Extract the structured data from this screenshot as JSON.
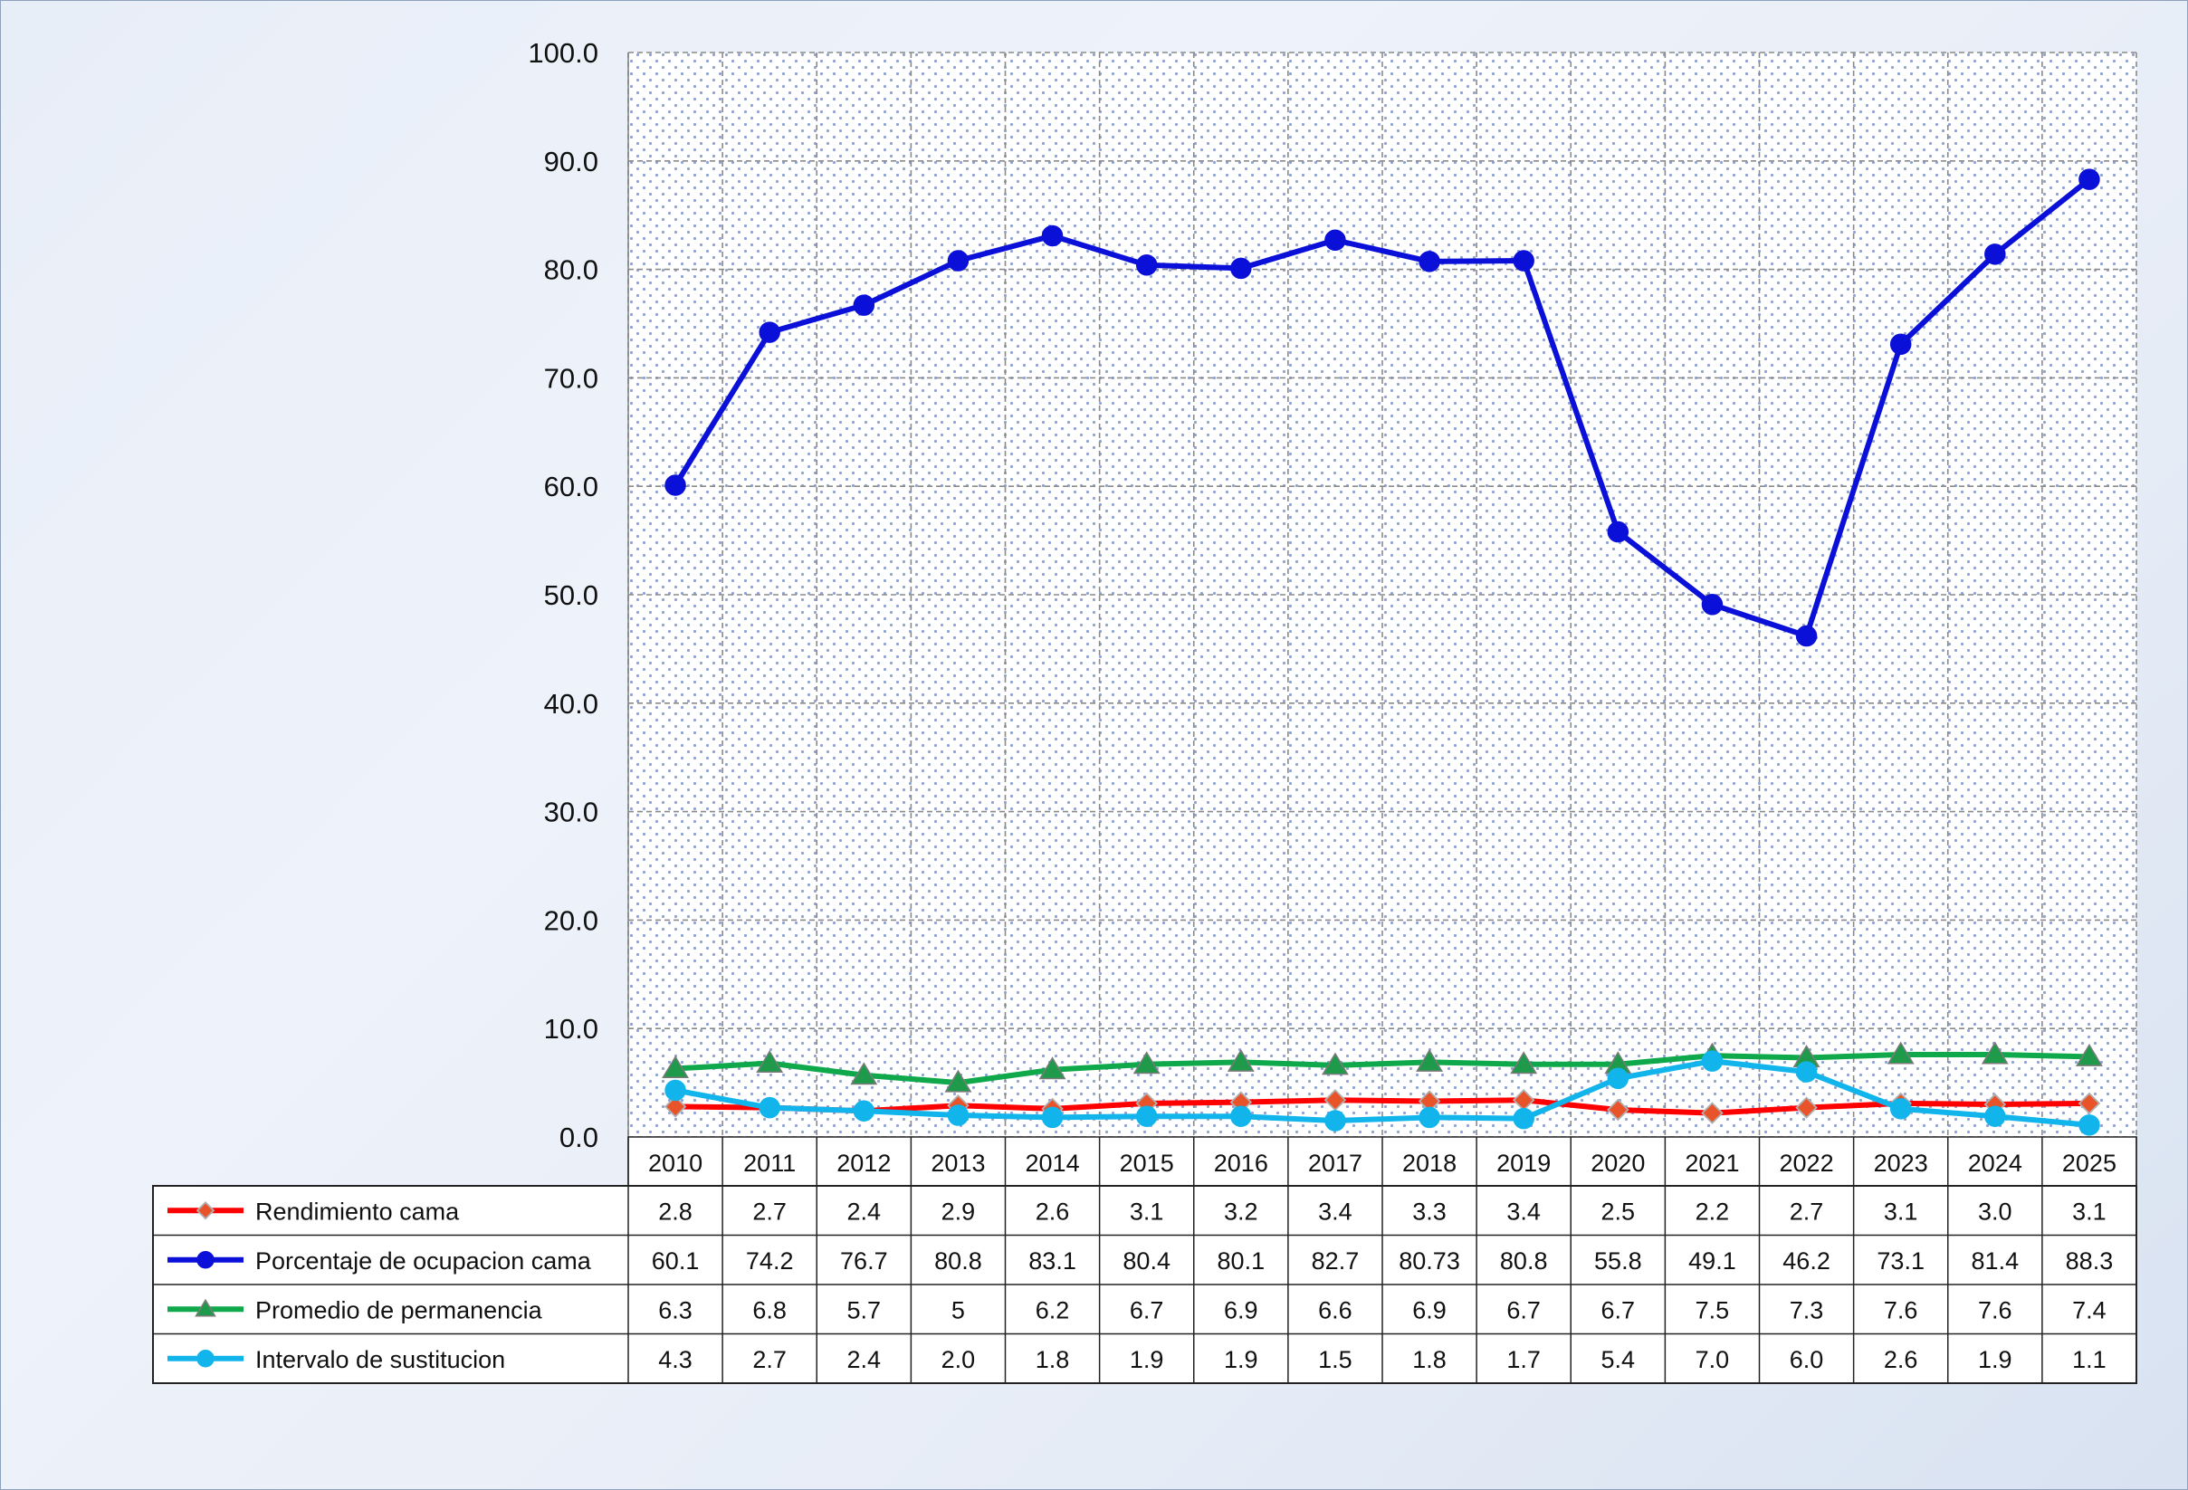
{
  "chart_data": {
    "type": "line",
    "title": "",
    "xlabel": "",
    "ylabel": "",
    "ylim": [
      0,
      100
    ],
    "y_ticks": [
      "0.0",
      "10.0",
      "20.0",
      "30.0",
      "40.0",
      "50.0",
      "60.0",
      "70.0",
      "80.0",
      "90.0",
      "100.0"
    ],
    "grid": true,
    "legend_placement": "data-table-left",
    "categories": [
      "2010",
      "2011",
      "2012",
      "2013",
      "2014",
      "2015",
      "2016",
      "2017",
      "2018",
      "2019",
      "2020",
      "2021",
      "2022",
      "2023",
      "2024",
      "2025"
    ],
    "series": [
      {
        "name": "Rendimiento cama",
        "color": "#ff0000",
        "marker": "diamond",
        "marker_color": "#e8532a",
        "values": [
          2.8,
          2.7,
          2.4,
          2.9,
          2.6,
          3.1,
          3.2,
          3.4,
          3.3,
          3.4,
          2.5,
          2.2,
          2.7,
          3.1,
          3.0,
          3.1
        ],
        "labels": [
          "2.8",
          "2.7",
          "2.4",
          "2.9",
          "2.6",
          "3.1",
          "3.2",
          "3.4",
          "3.3",
          "3.4",
          "2.5",
          "2.2",
          "2.7",
          "3.1",
          "3.0",
          "3.1"
        ]
      },
      {
        "name": "Porcentaje de ocupacion cama",
        "color": "#0a10d8",
        "marker": "circle",
        "marker_color": "#0a10d8",
        "values": [
          60.1,
          74.2,
          76.7,
          80.8,
          83.1,
          80.4,
          80.1,
          82.7,
          80.73,
          80.8,
          55.8,
          49.1,
          46.2,
          73.1,
          81.4,
          88.3
        ],
        "labels": [
          "60.1",
          "74.2",
          "76.7",
          "80.8",
          "83.1",
          "80.4",
          "80.1",
          "82.7",
          "80.73",
          "80.8",
          "55.8",
          "49.1",
          "46.2",
          "73.1",
          "81.4",
          "88.3"
        ]
      },
      {
        "name": "Promedio de permanencia",
        "color": "#0fa84a",
        "marker": "triangle",
        "marker_color": "#1f9a4a",
        "values": [
          6.3,
          6.8,
          5.7,
          5,
          6.2,
          6.7,
          6.9,
          6.6,
          6.9,
          6.7,
          6.7,
          7.5,
          7.3,
          7.6,
          7.6,
          7.4
        ],
        "labels": [
          "6.3",
          "6.8",
          "5.7",
          "5",
          "6.2",
          "6.7",
          "6.9",
          "6.6",
          "6.9",
          "6.7",
          "6.7",
          "7.5",
          "7.3",
          "7.6",
          "7.6",
          "7.4"
        ]
      },
      {
        "name": "Intervalo de sustitucion",
        "color": "#12b4ec",
        "marker": "circle",
        "marker_color": "#12b4ec",
        "values": [
          4.3,
          2.7,
          2.4,
          2.0,
          1.8,
          1.9,
          1.9,
          1.5,
          1.8,
          1.7,
          5.4,
          7.0,
          6.0,
          2.6,
          1.9,
          1.1
        ],
        "labels": [
          "4.3",
          "2.7",
          "2.4",
          "2.0",
          "1.8",
          "1.9",
          "1.9",
          "1.5",
          "1.8",
          "1.7",
          "5.4",
          "7.0",
          "6.0",
          "2.6",
          "1.9",
          "1.1"
        ]
      }
    ],
    "draw_order": [
      2,
      0,
      3,
      1
    ]
  }
}
